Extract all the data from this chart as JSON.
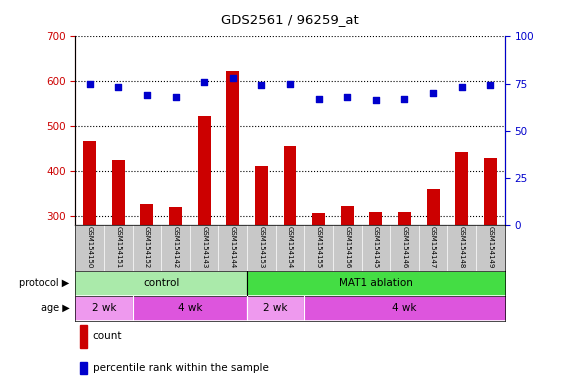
{
  "title": "GDS2561 / 96259_at",
  "samples": [
    "GSM154150",
    "GSM154151",
    "GSM154152",
    "GSM154142",
    "GSM154143",
    "GSM154144",
    "GSM154153",
    "GSM154154",
    "GSM154155",
    "GSM154156",
    "GSM154145",
    "GSM154146",
    "GSM154147",
    "GSM154148",
    "GSM154149"
  ],
  "counts": [
    467,
    425,
    325,
    320,
    522,
    622,
    410,
    455,
    305,
    322,
    308,
    308,
    360,
    442,
    428
  ],
  "percentiles": [
    75,
    73,
    69,
    68,
    76,
    78,
    74,
    75,
    67,
    68,
    66,
    67,
    70,
    73,
    74
  ],
  "ylim_left": [
    280,
    700
  ],
  "ylim_right": [
    0,
    100
  ],
  "yticks_left": [
    300,
    400,
    500,
    600,
    700
  ],
  "yticks_right": [
    0,
    25,
    50,
    75,
    100
  ],
  "bar_color": "#cc0000",
  "dot_color": "#0000cc",
  "protocol_groups": [
    {
      "label": "control",
      "start": 0,
      "end": 5,
      "color": "#aaeaaa"
    },
    {
      "label": "MAT1 ablation",
      "start": 6,
      "end": 14,
      "color": "#44dd44"
    }
  ],
  "age_groups": [
    {
      "label": "2 wk",
      "start": 0,
      "end": 1,
      "color": "#ee99ee"
    },
    {
      "label": "4 wk",
      "start": 2,
      "end": 5,
      "color": "#dd55dd"
    },
    {
      "label": "2 wk",
      "start": 6,
      "end": 7,
      "color": "#ee99ee"
    },
    {
      "label": "4 wk",
      "start": 8,
      "end": 14,
      "color": "#dd55dd"
    }
  ],
  "protocol_label": "protocol",
  "age_label": "age",
  "legend_count": "count",
  "legend_percentile": "percentile rank within the sample",
  "left_axis_color": "#cc0000",
  "right_axis_color": "#0000cc",
  "background_color": "#ffffff",
  "xticklabels_bg": "#c8c8c8"
}
